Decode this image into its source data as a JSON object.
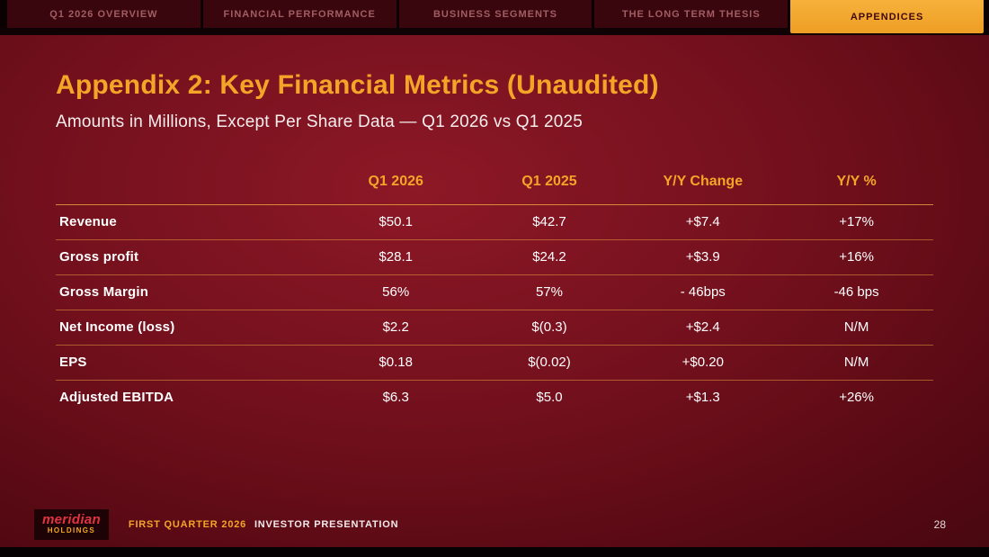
{
  "nav": {
    "tabs": [
      {
        "label": "Q1 2026 OVERVIEW",
        "active": false
      },
      {
        "label": "FINANCIAL PERFORMANCE",
        "active": false
      },
      {
        "label": "BUSINESS SEGMENTS",
        "active": false
      },
      {
        "label": "THE LONG TERM THESIS",
        "active": false
      },
      {
        "label": "APPENDICES",
        "active": true
      }
    ]
  },
  "slide": {
    "title": "Appendix 2: Key Financial Metrics (Unaudited)",
    "subtitle": "Amounts in Millions, Except Per Share Data — Q1 2026 vs Q1 2025",
    "table": {
      "columns": [
        "Q1 2026",
        "Q1 2025",
        "Y/Y Change",
        "Y/Y %"
      ],
      "rows": [
        {
          "label": "Revenue",
          "values": [
            "$50.1",
            "$42.7",
            "+$7.4",
            "+17%"
          ]
        },
        {
          "label": "Gross profit",
          "values": [
            "$28.1",
            "$24.2",
            "+$3.9",
            "+16%"
          ]
        },
        {
          "label": "Gross Margin",
          "values": [
            "56%",
            "57%",
            "- 46bps",
            "-46 bps"
          ]
        },
        {
          "label": "Net Income (loss)",
          "values": [
            "$2.2",
            "$(0.3)",
            "+$2.4",
            "N/M"
          ]
        },
        {
          "label": "EPS",
          "values": [
            "$0.18",
            "$(0.02)",
            "+$0.20",
            "N/M"
          ]
        },
        {
          "label": "Adjusted EBITDA",
          "values": [
            "$6.3",
            "$5.0",
            "+$1.3",
            "+26%"
          ]
        }
      ]
    }
  },
  "footer": {
    "logo_name": "meridian",
    "logo_sub": "HOLDINGS",
    "caption_highlight": "FIRST QUARTER 2026",
    "caption_rest": "INVESTOR PRESENTATION",
    "page_number": "28"
  },
  "colors": {
    "accent_gold": "#F4A528",
    "background_maroon": "#73101D",
    "nav_tab_maroon": "#38060C",
    "active_tab_gold": "#EE9E24",
    "logo_red": "#E23440",
    "text_white": "#FFFFFF"
  }
}
